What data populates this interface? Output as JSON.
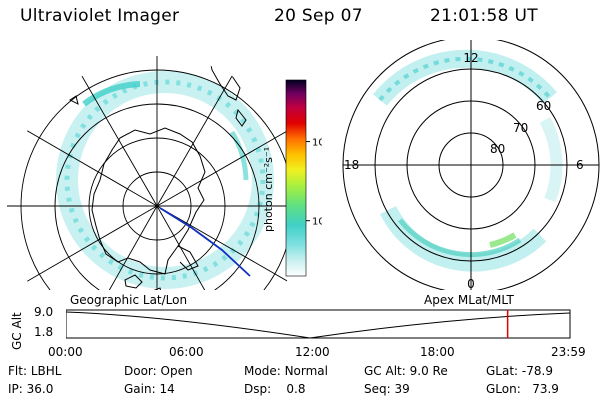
{
  "header": {
    "title": "Ultraviolet Imager",
    "date": "20 Sep 07",
    "time": "21:01:58 UT"
  },
  "geo_panel": {
    "label": "Geographic Lat/Lon"
  },
  "polar_panel": {
    "label": "Apex  MLat/MLT",
    "mlt_labels": {
      "top": "12",
      "left": "18",
      "right": "6",
      "bottom": "0"
    },
    "lat_labels": [
      "60",
      "70",
      "80"
    ]
  },
  "colorbar": {
    "unit_label": "photon cm⁻²s⁻¹",
    "ticks": [
      {
        "value": 10,
        "label": "10"
      },
      {
        "value": 100,
        "label": "100"
      }
    ],
    "range": [
      2,
      600
    ],
    "colors": [
      "#ffffff",
      "#e8f8f8",
      "#c0f0f0",
      "#80e0e0",
      "#40d0c8",
      "#60e080",
      "#a0f040",
      "#e0f020",
      "#ffd000",
      "#ff9000",
      "#ff4000",
      "#e00000",
      "#c00040",
      "#800060",
      "#400040",
      "#000020"
    ]
  },
  "altitude_plot": {
    "ylabel": "GC Alt",
    "yticks": [
      "9.0",
      "1.8"
    ],
    "xticks": [
      "00:00",
      "06:00",
      "12:00",
      "18:00",
      "23:59"
    ],
    "current_time_hours": 21.03,
    "marker_color": "#e00000"
  },
  "info": {
    "flt": {
      "label": "Flt:",
      "value": "LBHL"
    },
    "ip": {
      "label": "IP:",
      "value": "36.0"
    },
    "door": {
      "label": "Door:",
      "value": "Open"
    },
    "gain": {
      "label": "Gain:",
      "value": "14"
    },
    "mode": {
      "label": "Mode:",
      "value": "Normal"
    },
    "dsp": {
      "label": "Dsp:",
      "value": "0.8"
    },
    "gc_alt": {
      "label": "GC Alt:",
      "value": "9.0 Re"
    },
    "seq": {
      "label": "Seq:",
      "value": "39"
    },
    "glat": {
      "label": "GLat:",
      "value": "-78.9"
    },
    "glon": {
      "label": "GLon:",
      "value": "73.9"
    }
  }
}
